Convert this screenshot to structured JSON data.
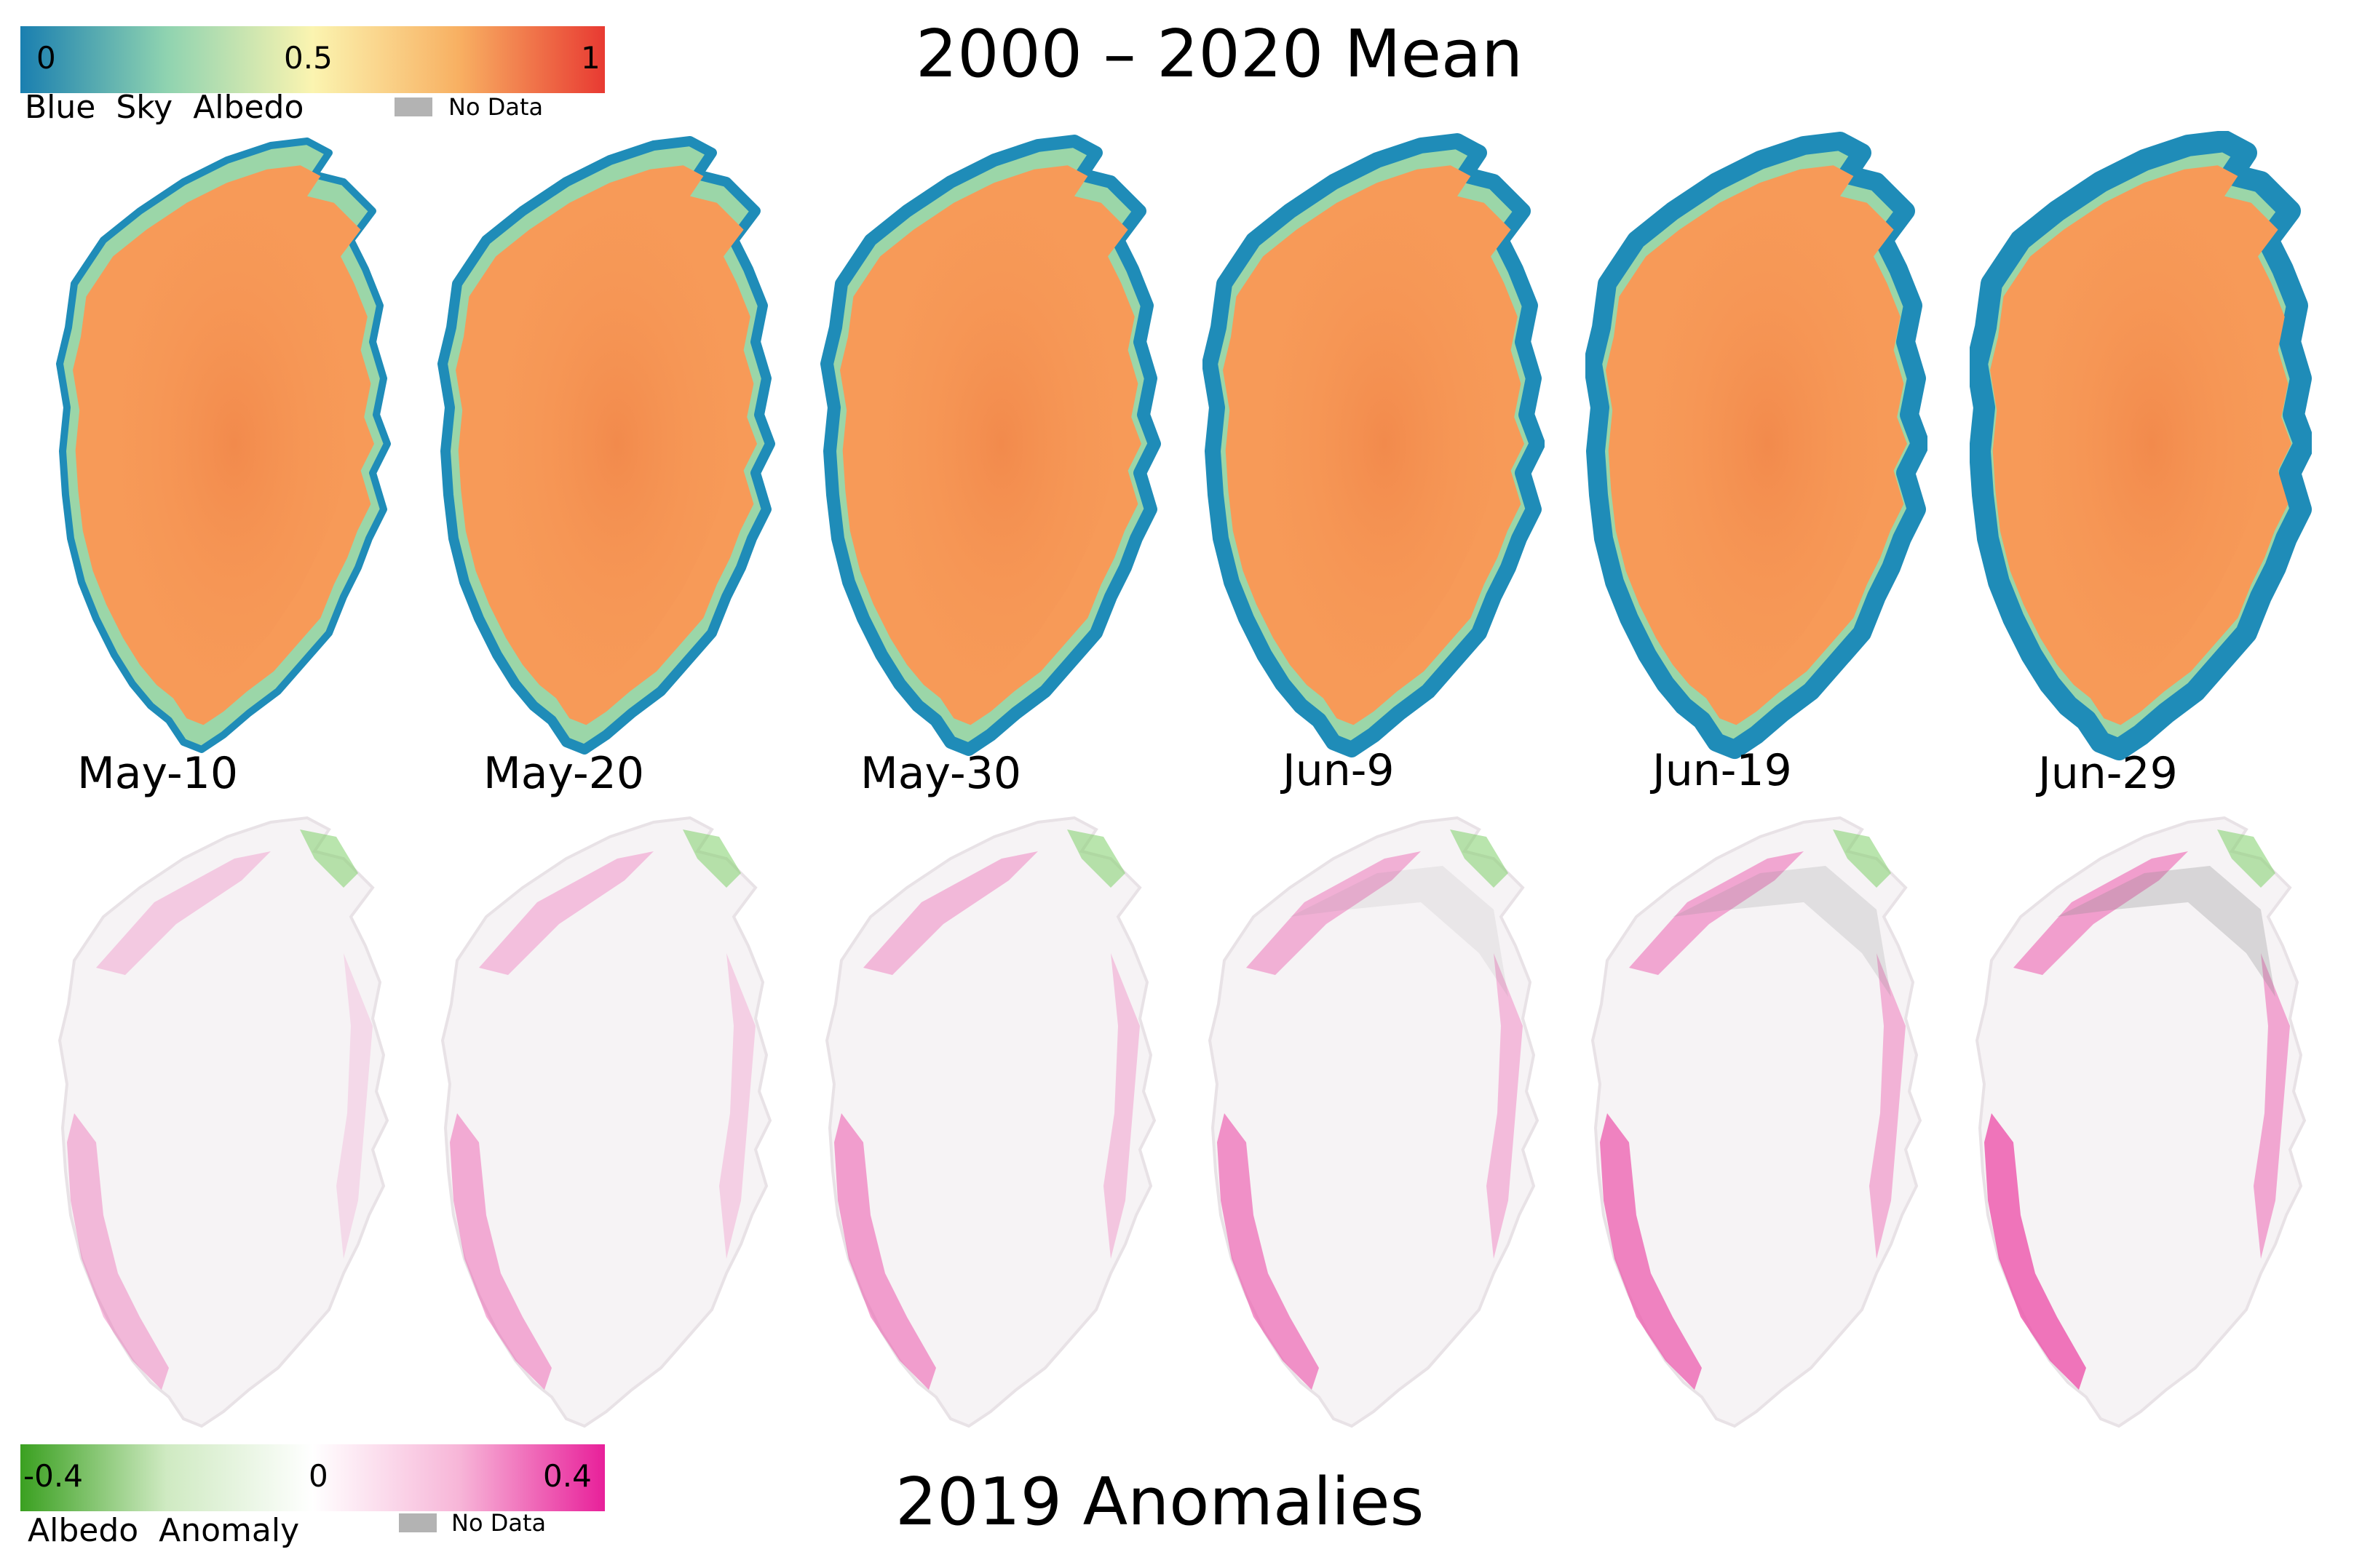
{
  "top": {
    "title": "2000 – 2020 Mean",
    "legend": {
      "caption": "Blue  Sky  Albedo",
      "ticks": [
        "0",
        "0.5",
        "1"
      ],
      "range": [
        0,
        1
      ],
      "colors": [
        "#1a7fb0",
        "#8fd3b0",
        "#fbf4b0",
        "#f8b062",
        "#e83a32"
      ],
      "nodata_label": "No Data",
      "nodata_color": "#b3b3b3"
    }
  },
  "bottom": {
    "title": "2019 Anomalies",
    "legend": {
      "caption": "Albedo  Anomaly",
      "ticks": [
        "-0.4",
        "0",
        "0.4"
      ],
      "range": [
        -0.4,
        0.4
      ],
      "colors": [
        "#3aa020",
        "#cfeac2",
        "#ffffff",
        "#f7b6d8",
        "#e8209a"
      ],
      "nodata_label": "No Data",
      "nodata_color": "#b3b3b3"
    }
  },
  "dates": [
    "May-10",
    "May-20",
    "May-30",
    "Jun-9",
    "Jun-19",
    "Jun-29"
  ],
  "style": {
    "ice_interior": "#f79a58",
    "ice_core": "#f28a4c",
    "margin_wet": "#1f8cb8",
    "margin_green": "#9bd6a8",
    "anomaly_base": "#f6f3f5",
    "anomaly_pink": "#ec4aa6",
    "anomaly_green": "#7fcf6a",
    "anomaly_grey": "#8a8a8a"
  }
}
